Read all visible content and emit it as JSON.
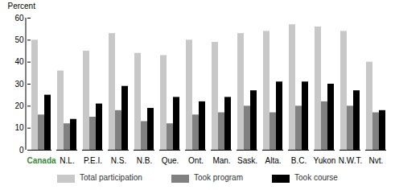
{
  "chart_data": {
    "type": "bar",
    "y_label": "Percent",
    "categories": [
      "Canada",
      "N.L.",
      "P.E.I.",
      "N.S.",
      "N.B.",
      "Que.",
      "Ont.",
      "Man.",
      "Sask.",
      "Alta.",
      "B.C.",
      "Yukon",
      "N.W.T.",
      "Nvt."
    ],
    "series": [
      {
        "name": "Total participation",
        "color": "#c8c8c8",
        "values": [
          50,
          36,
          45,
          53,
          44,
          43,
          50,
          49,
          53,
          54,
          57,
          56,
          54,
          40
        ]
      },
      {
        "name": "Took program",
        "color": "#808080",
        "values": [
          16,
          12,
          15,
          18,
          13,
          12,
          16,
          17,
          20,
          17,
          20,
          22,
          20,
          17
        ]
      },
      {
        "name": "Took course",
        "color": "#000000",
        "values": [
          25,
          14,
          21,
          29,
          19,
          24,
          22,
          24,
          27,
          31,
          31,
          30,
          27,
          18
        ]
      }
    ],
    "ylim": [
      0,
      60
    ],
    "yticks": [
      0,
      10,
      20,
      30,
      40,
      50,
      60
    ],
    "grid": false,
    "legend": "bottom"
  }
}
